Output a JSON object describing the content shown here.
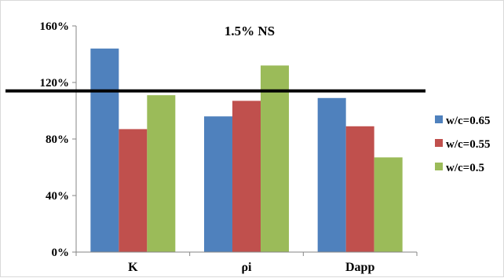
{
  "chart_data": {
    "type": "bar",
    "title": "1.5% NS",
    "categories": [
      "K",
      "ρi",
      "Dapp"
    ],
    "series": [
      {
        "name": "w/c=0.65",
        "color": "#4F81BD",
        "values": [
          144,
          96,
          109
        ]
      },
      {
        "name": "w/c=0.55",
        "color": "#C0504D",
        "values": [
          87,
          107,
          89
        ]
      },
      {
        "name": "w/c=0.5",
        "color": "#9BBB59",
        "values": [
          111,
          132,
          67
        ]
      }
    ],
    "ylim": [
      0,
      160
    ],
    "yticks": [
      "0%",
      "40%",
      "80%",
      "120%",
      "160%"
    ],
    "ytick_values": [
      0,
      40,
      80,
      120,
      160
    ],
    "reference_line": {
      "value": 114,
      "color": "#000000"
    },
    "legend_position": "right",
    "grid": false
  }
}
